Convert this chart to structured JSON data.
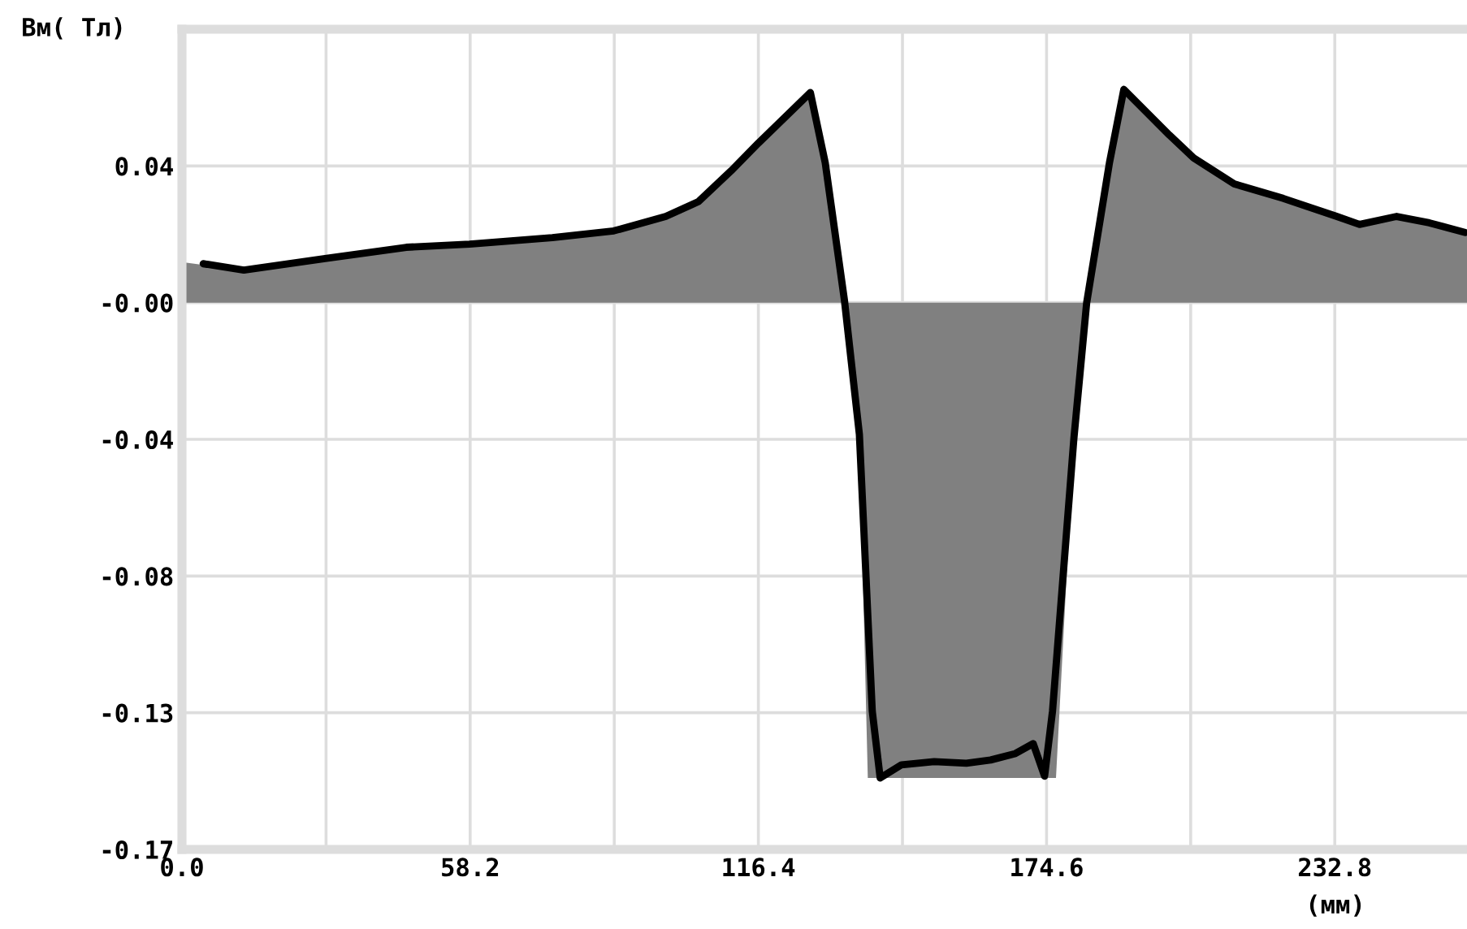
{
  "chart_data": {
    "type": "line",
    "ylabel": "Вм( Тл)",
    "xlabel": "(мм)",
    "xlim": [
      0,
      259.5
    ],
    "ylim": [
      -0.17,
      0.085
    ],
    "xticks": [
      {
        "value": 0,
        "label": "0.0"
      },
      {
        "value": 29.1,
        "label": null
      },
      58.2,
      {
        "value": 87.3,
        "label": null
      },
      116.4,
      {
        "value": 145.5,
        "label": null
      },
      174.6,
      {
        "value": 203.7,
        "label": null
      },
      232.8
    ],
    "yticks": [
      {
        "value": -0.17,
        "label": "-0.17"
      },
      {
        "value": -0.1275,
        "label": "-0.13"
      },
      {
        "value": -0.085,
        "label": "-0.08"
      },
      {
        "value": -0.0425,
        "label": "-0.04"
      },
      {
        "value": 0,
        "label": "-0.00"
      },
      {
        "value": 0.0425,
        "label": "0.04"
      }
    ],
    "grid": true,
    "legend": false,
    "series": [
      {
        "type": "area",
        "color": "#808080",
        "x": [
          0,
          12.5,
          28.9,
          45.3,
          58.1,
          74.8,
          87.2,
          97.7,
          104.3,
          110.9,
          116.4,
          126.9,
          129.9,
          133.8,
          136.8,
          138.5,
          176.5,
          180.1,
          182.7,
          187.3,
          190.2,
          199.4,
          204.3,
          212.5,
          222.4,
          233.2,
          237.8,
          245.3,
          251.9,
          259.5
        ],
        "values": [
          0.0126,
          0.0101,
          0.0137,
          0.0172,
          0.0182,
          0.0202,
          0.0223,
          0.0268,
          0.0314,
          0.041,
          0.0496,
          0.0653,
          0.0435,
          0.0005,
          -0.041,
          -0.1478,
          -0.1478,
          -0.0425,
          0.0,
          0.0435,
          0.0663,
          0.0521,
          0.045,
          0.0369,
          0.0324,
          0.0268,
          0.0243,
          0.0268,
          0.0248,
          0.0218
        ]
      },
      {
        "color": "#000000",
        "x": [
          4.3,
          12.5,
          28.9,
          45.3,
          58.1,
          74.8,
          87.2,
          97.7,
          104.3,
          110.9,
          116.4,
          126.9,
          129.9,
          133.8,
          136.8,
          139.4,
          141.0,
          145.3,
          151.9,
          158.4,
          163.3,
          168.3,
          171.9,
          174.2,
          175.8,
          180.1,
          182.7,
          187.3,
          190.2,
          199.4,
          204.3,
          212.5,
          222.4,
          233.2,
          237.8,
          245.3,
          251.9,
          259.1
        ],
        "values": [
          0.0121,
          0.0101,
          0.0137,
          0.0172,
          0.0182,
          0.0202,
          0.0223,
          0.0268,
          0.0314,
          0.041,
          0.0496,
          0.0653,
          0.0435,
          0.0005,
          -0.041,
          -0.127,
          -0.1478,
          -0.1437,
          -0.1427,
          -0.1432,
          -0.1422,
          -0.1402,
          -0.1371,
          -0.1472,
          -0.127,
          -0.0425,
          0.0,
          0.0435,
          0.0663,
          0.0521,
          0.045,
          0.0369,
          0.0324,
          0.0268,
          0.0243,
          0.0268,
          0.0248,
          0.0218
        ]
      }
    ]
  }
}
